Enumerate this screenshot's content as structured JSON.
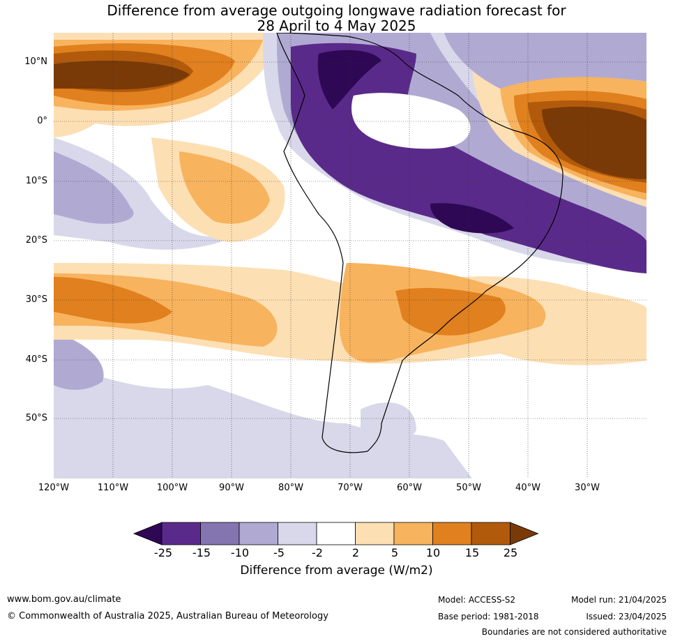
{
  "title": {
    "line1": "Difference from average outgoing longwave radiation forecast for",
    "line2": "28 April to 4 May 2025"
  },
  "map": {
    "lat_labels": [
      "10°N",
      "0°",
      "10°S",
      "20°S",
      "30°S",
      "40°S",
      "50°S"
    ],
    "lon_labels": [
      "120°W",
      "110°W",
      "100°W",
      "90°W",
      "80°W",
      "70°W",
      "60°W",
      "50°W",
      "40°W",
      "30°W"
    ],
    "gridlines": "dotted"
  },
  "legend": {
    "ticks": [
      "-25",
      "-15",
      "-10",
      "-5",
      "-2",
      "2",
      "5",
      "10",
      "15",
      "25"
    ],
    "colors": [
      "#2e0854",
      "#5a2a8a",
      "#8474b0",
      "#b0aad2",
      "#d8d8ea",
      "#ffffff",
      "#fddfb4",
      "#f8b35e",
      "#e0801e",
      "#b25a0c",
      "#7a3a08"
    ],
    "label": "Difference from average (W/m2)"
  },
  "footer": {
    "website": "www.bom.gov.au/climate",
    "copyright": "© Commonwealth of Australia 2025, Australian Bureau of Meteorology",
    "model": "Model: ACCESS-S2",
    "base_period": "Base period: 1981-2018",
    "model_run": "Model run: 21/04/2025",
    "issued": "Issued: 23/04/2025",
    "disclaimer": "Boundaries are not considered authoritative"
  }
}
